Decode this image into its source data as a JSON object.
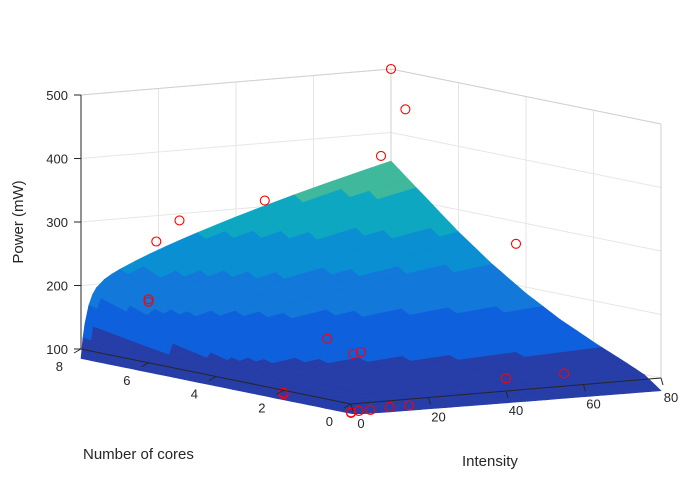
{
  "chart_data": {
    "type": "surface",
    "title": "",
    "xlabel": "Intensity",
    "ylabel": "Number of cores",
    "zlabel": "Power (mW)",
    "xlim": [
      0,
      80
    ],
    "ylim": [
      0,
      8
    ],
    "zlim": [
      100,
      500
    ],
    "x_ticks": [
      "0",
      "20",
      "40",
      "60",
      "80"
    ],
    "y_ticks": [
      "0",
      "2",
      "4",
      "6",
      "8"
    ],
    "z_ticks": [
      "100",
      "200",
      "300",
      "400",
      "500"
    ],
    "grid": true,
    "colormap": "parula",
    "surface": {
      "intensity": [
        0,
        0.5,
        1,
        2,
        4,
        6,
        10,
        15,
        20,
        30,
        40,
        50,
        60,
        70,
        80
      ],
      "cores": [
        0,
        0.5,
        1,
        2,
        3,
        4,
        5,
        6,
        7,
        8
      ],
      "power_at_max_intensity_by_cores": [
        80,
        100,
        112,
        135,
        160,
        190,
        225,
        265,
        310,
        355
      ],
      "power_at_zero_intensity": 85
    },
    "measured_points": [
      {
        "intensity": 80,
        "cores": 8,
        "power": 500
      },
      {
        "intensity": 75,
        "cores": 7,
        "power": 450
      },
      {
        "intensity": 60,
        "cores": 6,
        "power": 395
      },
      {
        "intensity": 30,
        "cores": 6,
        "power": 340
      },
      {
        "intensity": 8,
        "cores": 6,
        "power": 320
      },
      {
        "intensity": 2,
        "cores": 6,
        "power": 290
      },
      {
        "intensity": 0,
        "cores": 6,
        "power": 200
      },
      {
        "intensity": 0,
        "cores": 6,
        "power": 196
      },
      {
        "intensity": 60,
        "cores": 2,
        "power": 300
      },
      {
        "intensity": 55,
        "cores": 0,
        "power": 120
      },
      {
        "intensity": 40,
        "cores": 0,
        "power": 120
      },
      {
        "intensity": 20,
        "cores": 2,
        "power": 150
      },
      {
        "intensity": 18,
        "cores": 2,
        "power": 148
      },
      {
        "intensity": 20,
        "cores": 3,
        "power": 160
      },
      {
        "intensity": 0,
        "cores": 2,
        "power": 96
      },
      {
        "intensity": 0,
        "cores": 2,
        "power": 94
      },
      {
        "intensity": 15,
        "cores": 0,
        "power": 90
      },
      {
        "intensity": 10,
        "cores": 0,
        "power": 90
      },
      {
        "intensity": 5,
        "cores": 0,
        "power": 88
      },
      {
        "intensity": 2,
        "cores": 0,
        "power": 88
      },
      {
        "intensity": 0,
        "cores": 0,
        "power": 87
      },
      {
        "intensity": 0,
        "cores": 0,
        "power": 86
      }
    ],
    "marker_color": "#ff0000"
  }
}
